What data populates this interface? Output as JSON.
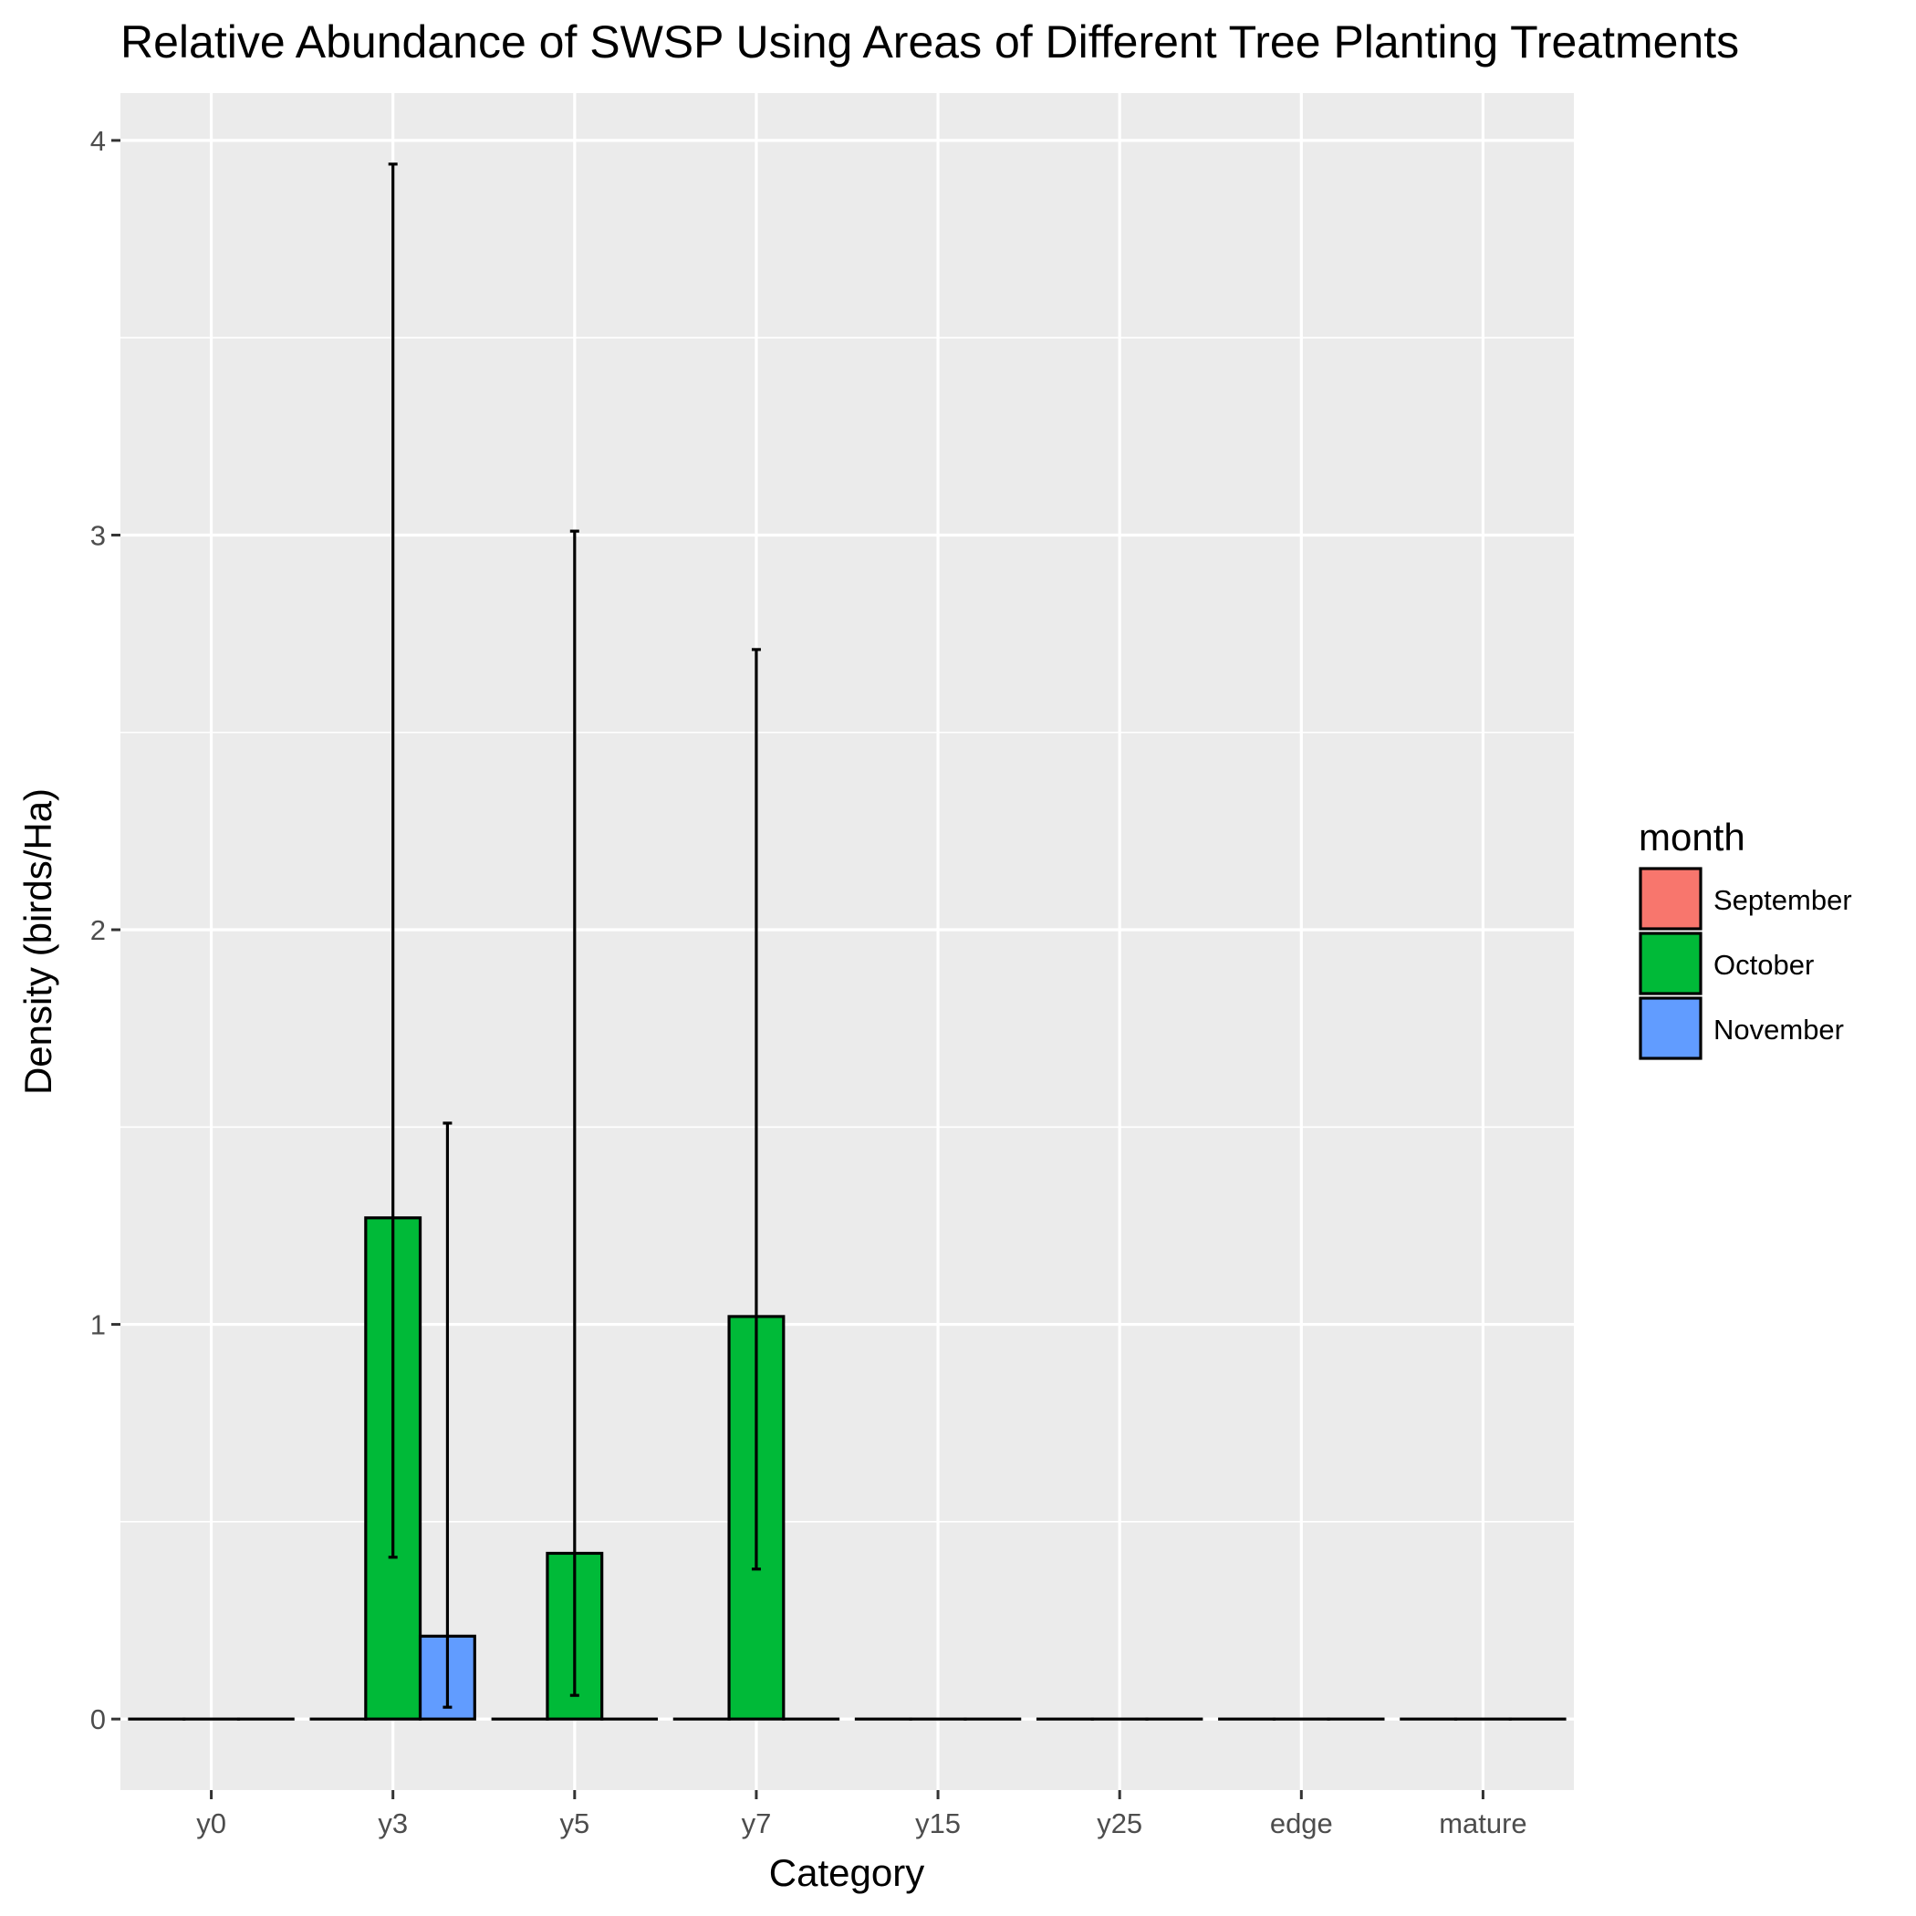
{
  "chart_data": {
    "type": "bar",
    "title": "Relative Abundance of  SWSP  Using Areas of Different Tree Planting Treatments",
    "xlabel": "Category",
    "ylabel": "Density (birds/Ha)",
    "categories": [
      "y0",
      "y3",
      "y5",
      "y7",
      "y15",
      "y25",
      "edge",
      "mature"
    ],
    "ylim": [
      -0.18,
      4.12
    ],
    "yticks": [
      0,
      1,
      2,
      3,
      4
    ],
    "grid": true,
    "legend": {
      "title": "month",
      "placement": "right"
    },
    "series": [
      {
        "name": "September",
        "color": "#F8766D",
        "values": [
          0,
          0,
          0,
          0,
          0,
          0,
          0,
          0
        ],
        "lower": [
          null,
          null,
          null,
          null,
          null,
          null,
          null,
          null
        ],
        "upper": [
          null,
          null,
          null,
          null,
          null,
          null,
          null,
          null
        ]
      },
      {
        "name": "October",
        "color": "#00BA38",
        "values": [
          0,
          1.27,
          0.42,
          1.02,
          0,
          0,
          0,
          0
        ],
        "lower": [
          null,
          0.41,
          0.06,
          0.38,
          null,
          null,
          null,
          null
        ],
        "upper": [
          null,
          3.94,
          3.01,
          2.71,
          null,
          null,
          null,
          null
        ]
      },
      {
        "name": "November",
        "color": "#619CFF",
        "values": [
          0,
          0.21,
          0,
          0,
          0,
          0,
          0,
          0
        ],
        "lower": [
          null,
          0.03,
          null,
          null,
          null,
          null,
          null,
          null
        ],
        "upper": [
          null,
          1.51,
          null,
          null,
          null,
          null,
          null,
          null
        ]
      }
    ]
  }
}
